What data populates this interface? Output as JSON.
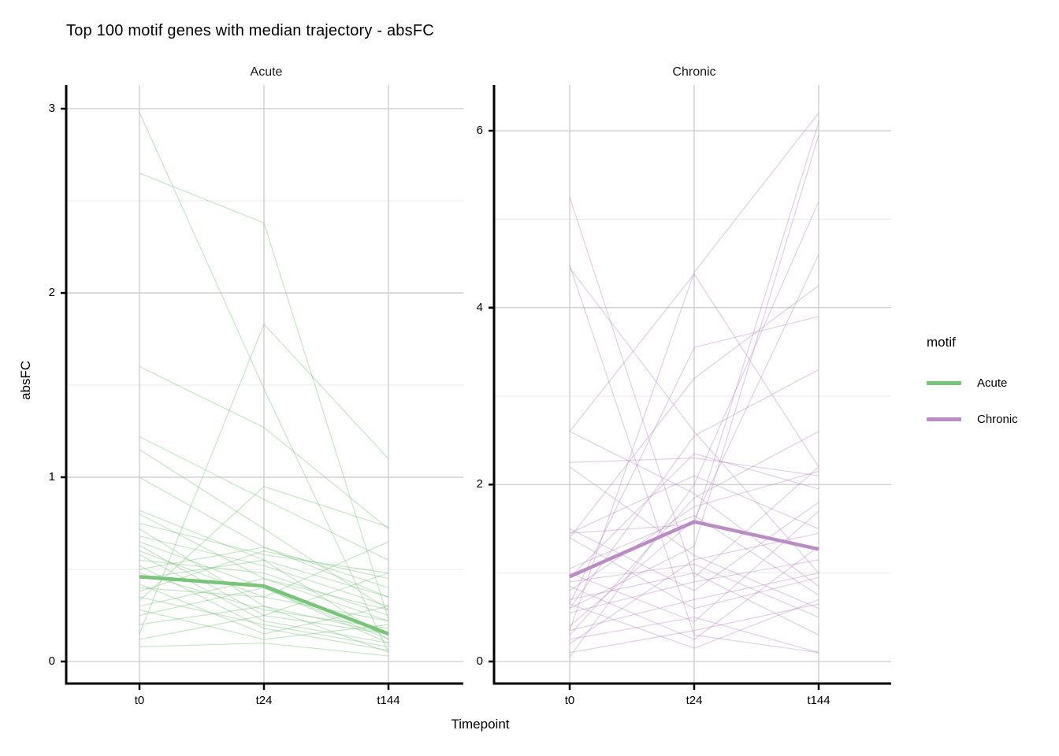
{
  "chart_data": {
    "type": "line",
    "title": "Top 100 motif genes with median trajectory - absFC",
    "xlabel": "Timepoint",
    "ylabel": "absFC",
    "categories": [
      "t0",
      "t24",
      "t144"
    ],
    "grid": {
      "major_color": "#d2d2d2",
      "minor_color": "#e9e9e9"
    },
    "axis_color": "#000000",
    "legend": {
      "title": "motif",
      "position": "right",
      "entries": [
        {
          "label": "Acute",
          "color": "#78c478"
        },
        {
          "label": "Chronic",
          "color": "#ba8cc4"
        }
      ]
    },
    "facets": [
      {
        "label": "Acute",
        "color": "#78c478",
        "ylim": [
          -0.25,
          3.12
        ],
        "yticks": [
          0,
          1,
          2,
          3
        ],
        "yminor": [
          0.5,
          1.5,
          2.5
        ],
        "median": [
          0.46,
          0.41,
          0.15
        ],
        "lines": [
          [
            2.65,
            2.38,
            0.23
          ],
          [
            2.98,
            1.48,
            0.05
          ],
          [
            0.15,
            1.83,
            1.1
          ],
          [
            1.6,
            1.27,
            0.72
          ],
          [
            1.22,
            0.88,
            0.55
          ],
          [
            1.15,
            0.72,
            0.28
          ],
          [
            1.0,
            0.62,
            0.4
          ],
          [
            0.33,
            0.95,
            0.73
          ],
          [
            0.82,
            0.55,
            0.35
          ],
          [
            0.8,
            0.45,
            0.22
          ],
          [
            0.75,
            0.58,
            0.48
          ],
          [
            0.72,
            0.3,
            0.15
          ],
          [
            0.68,
            0.52,
            0.3
          ],
          [
            0.65,
            0.4,
            0.12
          ],
          [
            0.63,
            0.25,
            0.48
          ],
          [
            0.6,
            0.35,
            0.65
          ],
          [
            0.58,
            0.22,
            0.1
          ],
          [
            0.55,
            0.48,
            0.25
          ],
          [
            0.52,
            0.18,
            0.06
          ],
          [
            0.5,
            0.62,
            0.35
          ],
          [
            0.48,
            0.28,
            0.18
          ],
          [
            0.45,
            0.55,
            0.12
          ],
          [
            0.42,
            0.15,
            0.3
          ],
          [
            0.4,
            0.35,
            0.22
          ],
          [
            0.38,
            0.6,
            0.45
          ],
          [
            0.35,
            0.2,
            0.08
          ],
          [
            0.3,
            0.45,
            0.28
          ],
          [
            0.28,
            0.12,
            0.2
          ],
          [
            0.25,
            0.4,
            0.1
          ],
          [
            0.2,
            0.3,
            0.05
          ],
          [
            0.12,
            0.25,
            0.15
          ],
          [
            0.08,
            0.1,
            0.03
          ]
        ]
      },
      {
        "label": "Chronic",
        "color": "#ba8cc4",
        "ylim": [
          -0.25,
          6.52
        ],
        "yticks": [
          0,
          2,
          4,
          6
        ],
        "yminor": [
          1,
          3,
          5
        ],
        "median": [
          0.96,
          1.58,
          1.27
        ],
        "lines": [
          [
            5.25,
            0.95,
            2.2
          ],
          [
            4.48,
            0.3,
            0.1
          ],
          [
            4.45,
            2.6,
            1.0
          ],
          [
            0.35,
            4.4,
            6.2
          ],
          [
            2.6,
            4.38,
            2.2
          ],
          [
            1.45,
            1.55,
            6.1
          ],
          [
            0.6,
            1.3,
            5.95
          ],
          [
            0.05,
            2.0,
            5.2
          ],
          [
            0.4,
            1.6,
            4.6
          ],
          [
            1.4,
            3.2,
            4.25
          ],
          [
            0.65,
            3.55,
            3.9
          ],
          [
            0.6,
            2.55,
            3.3
          ],
          [
            0.3,
            1.85,
            2.6
          ],
          [
            2.25,
            2.3,
            2.1
          ],
          [
            0.8,
            1.75,
            2.15
          ],
          [
            0.95,
            2.35,
            1.95
          ],
          [
            1.5,
            0.8,
            1.8
          ],
          [
            1.0,
            0.45,
            1.7
          ],
          [
            1.45,
            2.1,
            1.5
          ],
          [
            0.2,
            1.15,
            1.45
          ],
          [
            0.85,
            0.25,
            1.3
          ],
          [
            0.55,
            0.9,
            1.15
          ],
          [
            2.2,
            1.2,
            0.6
          ],
          [
            1.05,
            1.65,
            0.75
          ],
          [
            0.35,
            0.7,
            1.0
          ],
          [
            1.4,
            0.6,
            0.95
          ],
          [
            2.6,
            1.9,
            0.85
          ],
          [
            0.9,
            1.1,
            0.5
          ],
          [
            0.7,
            1.0,
            0.3
          ],
          [
            0.65,
            0.15,
            0.7
          ],
          [
            0.25,
            0.5,
            0.1
          ],
          [
            0.1,
            0.35,
            0.65
          ]
        ]
      }
    ]
  }
}
